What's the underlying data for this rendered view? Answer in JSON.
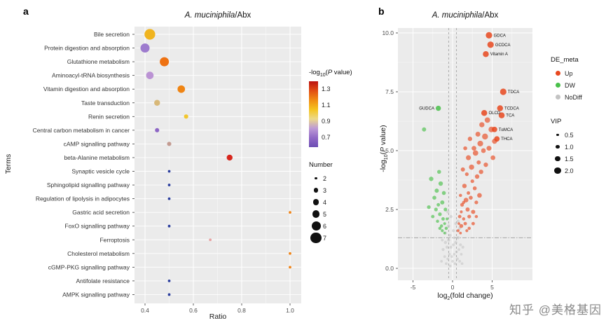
{
  "watermark": "知乎 @美格基因",
  "panels": {
    "a": {
      "label": "a",
      "title_italic": "A. muciniphila",
      "title_plain": "/Abx",
      "xlabel": "Ratio",
      "ylabel": "Terms",
      "color_legend": {
        "pre": "-log",
        "sub": "10",
        "open": "(",
        "pvar": "P",
        "rest": " value)",
        "ticks": [
          "1.3",
          "1.1",
          "0.9",
          "0.7"
        ],
        "gradient": [
          "#bb1210",
          "#e24d12",
          "#f08c12",
          "#f5c41f",
          "#ecd98a",
          "#bd9ad6",
          "#9168c6",
          "#6b4db3"
        ]
      },
      "size_legend": {
        "title": "Number",
        "items": [
          2,
          3,
          4,
          5,
          6,
          7
        ]
      }
    },
    "b": {
      "label": "b",
      "title_italic": "A. muciniphila",
      "title_plain": "/Abx",
      "xlabel": {
        "pre": "log",
        "sub": "2",
        "rest": "(fold change)"
      },
      "ylabel": {
        "pre": "-log",
        "sub": "10",
        "open": "(",
        "pvar": "P",
        "rest": " value)"
      },
      "de_legend": {
        "title": "DE_meta",
        "items": [
          {
            "label": "Up",
            "color": "#e8481f"
          },
          {
            "label": "DW",
            "color": "#49c04a"
          },
          {
            "label": "NoDiff",
            "color": "#c3c3c3"
          }
        ]
      },
      "vip_legend": {
        "title": "VIP",
        "items": [
          {
            "label": "0.5",
            "vip": 0.5
          },
          {
            "label": "1.0",
            "vip": 1.0
          },
          {
            "label": "1.5",
            "vip": 1.5
          },
          {
            "label": "2.0",
            "vip": 2.0
          }
        ]
      }
    }
  },
  "chart_data": [
    {
      "type": "scatter",
      "variant": "dotplot",
      "title": "A. muciniphila/Abx",
      "xlabel": "Ratio",
      "ylabel": "Terms",
      "xlim": [
        0.36,
        1.05
      ],
      "x_ticks": [
        {
          "v": 0.4,
          "label": "0.4"
        },
        {
          "v": 0.6,
          "label": "0.6"
        },
        {
          "v": 0.8,
          "label": "0.8"
        },
        {
          "v": 1.0,
          "label": "1.0"
        }
      ],
      "color_label": "-log10(P value)",
      "size_label": "Number",
      "points": [
        {
          "term": "Bile secretion",
          "ratio": 0.42,
          "number": 7,
          "neglog10p": 1.05,
          "color": "#f0b41f"
        },
        {
          "term": "Protein digestion and absorption",
          "ratio": 0.4,
          "number": 6,
          "neglog10p": 0.78,
          "color": "#9d7bce"
        },
        {
          "term": "Glutathione metabolism",
          "ratio": 0.48,
          "number": 6,
          "neglog10p": 1.2,
          "color": "#ee7213"
        },
        {
          "term": "Aminoacyl-tRNA biosynthesis",
          "ratio": 0.42,
          "number": 5,
          "neglog10p": 0.82,
          "color": "#bb93d4"
        },
        {
          "term": "Vitamin digestion and absorption",
          "ratio": 0.55,
          "number": 5,
          "neglog10p": 1.18,
          "color": "#ef8413"
        },
        {
          "term": "Taste transduction",
          "ratio": 0.45,
          "number": 4,
          "neglog10p": 0.95,
          "color": "#d8b878"
        },
        {
          "term": "Renin secretion",
          "ratio": 0.57,
          "number": 3,
          "neglog10p": 1.05,
          "color": "#f2c62e"
        },
        {
          "term": "Central carbon metabolism in cancer",
          "ratio": 0.45,
          "number": 3,
          "neglog10p": 0.78,
          "color": "#8d66c5"
        },
        {
          "term": "cAMP signalling pathway",
          "ratio": 0.5,
          "number": 3,
          "neglog10p": 0.9,
          "color": "#c39b91"
        },
        {
          "term": "beta-Alanine metabolism",
          "ratio": 0.75,
          "number": 4,
          "neglog10p": 1.32,
          "color": "#d7261d"
        },
        {
          "term": "Synaptic vesicle cycle",
          "ratio": 0.5,
          "number": 2,
          "neglog10p": 0.6,
          "color": "#2c3f9e"
        },
        {
          "term": "Sphingolipid signalling pathway",
          "ratio": 0.5,
          "number": 2,
          "neglog10p": 0.6,
          "color": "#2c3f9e"
        },
        {
          "term": "Regulation of lipolysis in adipocytes",
          "ratio": 0.5,
          "number": 2,
          "neglog10p": 0.6,
          "color": "#2c3f9e"
        },
        {
          "term": "Gastric acid secretion",
          "ratio": 1.0,
          "number": 2,
          "neglog10p": 1.15,
          "color": "#f08519"
        },
        {
          "term": "FoxO signalling pathway",
          "ratio": 0.5,
          "number": 2,
          "neglog10p": 0.6,
          "color": "#2c3f9e"
        },
        {
          "term": "Ferroptosis",
          "ratio": 0.67,
          "number": 2,
          "neglog10p": 0.95,
          "color": "#e8a2a2"
        },
        {
          "term": "Cholesterol metabolism",
          "ratio": 1.0,
          "number": 2,
          "neglog10p": 1.15,
          "color": "#f08519"
        },
        {
          "term": "cGMP-PKG signalling pathway",
          "ratio": 1.0,
          "number": 2,
          "neglog10p": 1.15,
          "color": "#f08519"
        },
        {
          "term": "Antifolate resistance",
          "ratio": 0.5,
          "number": 2,
          "neglog10p": 0.6,
          "color": "#2c3f9e"
        },
        {
          "term": "AMPK signalling pathway",
          "ratio": 0.5,
          "number": 2,
          "neglog10p": 0.6,
          "color": "#2c3f9e"
        }
      ]
    },
    {
      "type": "scatter",
      "variant": "volcano",
      "title": "A. muciniphila/Abx",
      "xlabel": "log2(fold change)",
      "ylabel": "-log10(P value)",
      "xlim": [
        -6.9,
        10.0
      ],
      "ylim": [
        -0.5,
        10.2
      ],
      "x_ticks": [
        {
          "v": -5,
          "label": "-5"
        },
        {
          "v": 0,
          "label": "0"
        },
        {
          "v": 5,
          "label": "5"
        }
      ],
      "y_ticks": [
        {
          "v": 0,
          "label": "0.0"
        },
        {
          "v": 2.5,
          "label": "2.5"
        },
        {
          "v": 5,
          "label": "5.0"
        },
        {
          "v": 7.5,
          "label": "7.5"
        },
        {
          "v": 10,
          "label": "10.0"
        }
      ],
      "hline": 1.3,
      "vlines": [
        -0.5,
        0.5
      ],
      "groups": {
        "Up": "#e8481f",
        "DW": "#49c04a",
        "NoDiff": "#c3c3c3"
      },
      "labeled_points": [
        {
          "label": "GDCA",
          "x": 4.6,
          "y": 9.9,
          "vip": 2.0,
          "group": "Up",
          "side": "right"
        },
        {
          "label": "GCDCA",
          "x": 4.8,
          "y": 9.5,
          "vip": 2.0,
          "group": "Up",
          "side": "right"
        },
        {
          "label": "Vitamin A",
          "x": 4.2,
          "y": 9.1,
          "vip": 1.8,
          "group": "Up",
          "side": "right"
        },
        {
          "label": "TDCA",
          "x": 6.4,
          "y": 7.5,
          "vip": 2.0,
          "group": "Up",
          "side": "right"
        },
        {
          "label": "TCDCA",
          "x": 6.0,
          "y": 6.8,
          "vip": 1.8,
          "group": "Up",
          "side": "right"
        },
        {
          "label": "TCA",
          "x": 6.2,
          "y": 6.5,
          "vip": 1.8,
          "group": "Up",
          "side": "right"
        },
        {
          "label": "TαMCA",
          "x": 5.3,
          "y": 5.9,
          "vip": 1.6,
          "group": "Up",
          "side": "right"
        },
        {
          "label": "THCA",
          "x": 5.6,
          "y": 5.5,
          "vip": 1.6,
          "group": "Up",
          "side": "right"
        },
        {
          "label": "OLCD",
          "x": 4.0,
          "y": 6.6,
          "vip": 1.8,
          "group": "Up",
          "side": "right"
        },
        {
          "label": "GUDCA",
          "x": -1.8,
          "y": 6.8,
          "vip": 1.5,
          "group": "DW",
          "side": "left"
        }
      ],
      "up_points": [
        [
          0.7,
          1.6,
          0.6
        ],
        [
          0.9,
          2.2,
          0.8
        ],
        [
          1.0,
          3.1,
          0.7
        ],
        [
          1.1,
          1.8,
          1.0
        ],
        [
          1.2,
          2.7,
          0.9
        ],
        [
          1.3,
          4.2,
          1.1
        ],
        [
          1.4,
          2.1,
          0.7
        ],
        [
          1.5,
          3.5,
          1.2
        ],
        [
          1.6,
          1.9,
          0.8
        ],
        [
          1.6,
          5.1,
          1.0
        ],
        [
          1.7,
          2.9,
          1.3
        ],
        [
          1.8,
          4.0,
          0.9
        ],
        [
          1.9,
          2.5,
          1.1
        ],
        [
          2.0,
          4.7,
          1.4
        ],
        [
          2.0,
          3.2,
          0.8
        ],
        [
          2.1,
          1.7,
          0.7
        ],
        [
          2.2,
          5.5,
          1.2
        ],
        [
          2.3,
          3.0,
          1.0
        ],
        [
          2.4,
          4.3,
          1.5
        ],
        [
          2.5,
          3.7,
          0.9
        ],
        [
          2.6,
          2.4,
          1.1
        ],
        [
          2.7,
          5.1,
          1.3
        ],
        [
          2.8,
          3.4,
          1.0
        ],
        [
          2.9,
          4.9,
          1.6
        ],
        [
          3.0,
          2.8,
          0.9
        ],
        [
          3.1,
          3.9,
          1.2
        ],
        [
          3.2,
          5.7,
          1.4
        ],
        [
          3.3,
          4.5,
          1.1
        ],
        [
          3.4,
          3.1,
          1.3
        ],
        [
          3.5,
          5.3,
          1.7
        ],
        [
          3.6,
          4.1,
          1.2
        ],
        [
          3.7,
          6.1,
          1.5
        ],
        [
          3.9,
          5.0,
          1.3
        ],
        [
          4.1,
          5.6,
          1.8
        ],
        [
          4.2,
          4.4,
          1.2
        ],
        [
          4.4,
          6.3,
          1.6
        ],
        [
          4.6,
          5.1,
          1.4
        ],
        [
          4.9,
          5.9,
          1.7
        ],
        [
          5.1,
          4.7,
          1.3
        ],
        [
          5.3,
          5.4,
          1.5
        ],
        [
          0.8,
          1.9,
          0.5
        ],
        [
          1.1,
          2.4,
          0.6
        ],
        [
          1.4,
          2.8,
          0.7
        ],
        [
          2.1,
          2.2,
          0.9
        ],
        [
          2.6,
          1.9,
          0.8
        ],
        [
          3.0,
          2.2,
          0.7
        ],
        [
          1.0,
          1.5,
          0.5
        ],
        [
          1.8,
          1.6,
          0.6
        ]
      ],
      "dw_points": [
        [
          -0.8,
          1.7,
          0.7
        ],
        [
          -0.9,
          2.5,
          0.9
        ],
        [
          -1.0,
          1.9,
          0.6
        ],
        [
          -1.1,
          3.2,
          1.0
        ],
        [
          -1.2,
          2.1,
          0.8
        ],
        [
          -1.3,
          2.8,
          1.1
        ],
        [
          -1.4,
          1.8,
          0.7
        ],
        [
          -1.5,
          3.6,
          1.2
        ],
        [
          -1.6,
          2.3,
          0.9
        ],
        [
          -1.7,
          4.1,
          1.0
        ],
        [
          -1.8,
          2.7,
          0.8
        ],
        [
          -1.9,
          2.0,
          0.7
        ],
        [
          -2.0,
          3.3,
          1.1
        ],
        [
          -2.1,
          2.5,
          0.9
        ],
        [
          -2.3,
          3.0,
          1.0
        ],
        [
          -2.5,
          2.2,
          0.8
        ],
        [
          -2.7,
          3.8,
          1.2
        ],
        [
          -3.0,
          2.6,
          0.9
        ],
        [
          -1.0,
          1.5,
          0.5
        ],
        [
          -1.3,
          1.6,
          0.6
        ],
        [
          -0.7,
          2.1,
          0.6
        ],
        [
          -1.6,
          1.7,
          0.7
        ],
        [
          -3.6,
          5.9,
          1.1
        ]
      ],
      "nodiff_points": [
        [
          -1.4,
          0.3,
          0.5
        ],
        [
          -1.2,
          0.8,
          0.6
        ],
        [
          -1.0,
          0.5,
          0.5
        ],
        [
          -0.9,
          1.1,
          0.7
        ],
        [
          -0.8,
          0.2,
          0.5
        ],
        [
          -0.7,
          0.9,
          0.6
        ],
        [
          -0.6,
          0.4,
          0.5
        ],
        [
          -0.5,
          1.2,
          0.7
        ],
        [
          -0.4,
          0.6,
          0.5
        ],
        [
          -0.3,
          0.1,
          0.5
        ],
        [
          -0.2,
          0.9,
          0.6
        ],
        [
          -0.1,
          0.5,
          0.5
        ],
        [
          0.0,
          0.3,
          0.5
        ],
        [
          0.1,
          1.0,
          0.6
        ],
        [
          0.2,
          0.6,
          0.5
        ],
        [
          0.3,
          0.2,
          0.5
        ],
        [
          0.4,
          1.1,
          0.7
        ],
        [
          0.5,
          0.7,
          0.5
        ],
        [
          0.6,
          0.4,
          0.6
        ],
        [
          0.7,
          1.3,
          0.7
        ],
        [
          0.8,
          0.8,
          0.5
        ],
        [
          0.9,
          0.3,
          0.5
        ],
        [
          1.0,
          1.0,
          0.6
        ],
        [
          1.1,
          0.6,
          0.5
        ],
        [
          1.2,
          0.2,
          0.5
        ],
        [
          -0.5,
          1.8,
          0.7
        ],
        [
          0.4,
          1.9,
          0.6
        ],
        [
          -0.2,
          2.2,
          0.7
        ],
        [
          0.1,
          1.6,
          0.6
        ],
        [
          0.7,
          2.0,
          0.7
        ],
        [
          -0.9,
          1.5,
          0.6
        ],
        [
          -1.3,
          1.2,
          0.5
        ],
        [
          1.3,
          0.9,
          0.6
        ],
        [
          -0.6,
          2.4,
          0.7
        ],
        [
          0.9,
          1.7,
          0.6
        ],
        [
          0.2,
          1.3,
          0.5
        ],
        [
          -0.3,
          1.4,
          0.6
        ]
      ]
    }
  ]
}
